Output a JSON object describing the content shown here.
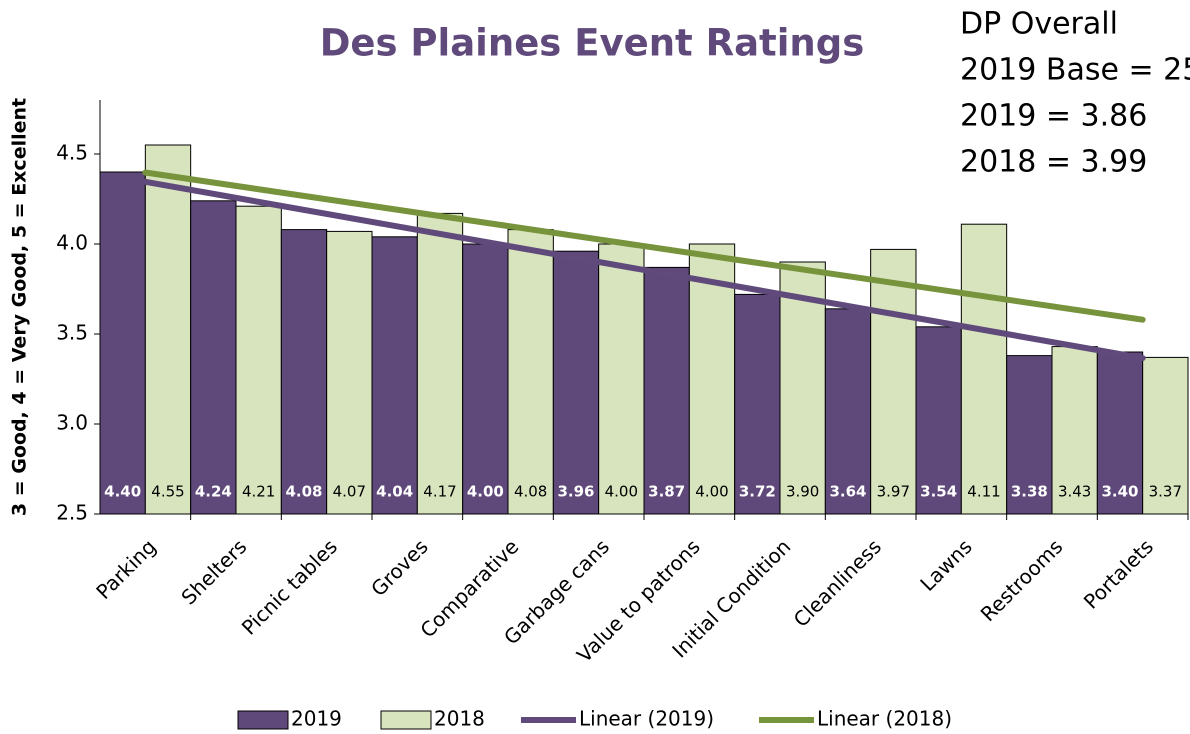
{
  "chart_data": {
    "type": "bar",
    "title": "Des Plaines Event Ratings",
    "y_label": "3 = Good, 4 = Very Good, 5 = Excellent",
    "annotations": [
      "DP Overall",
      "2019 Base = 25",
      "2019 = 3.86",
      "2018 = 3.99"
    ],
    "categories": [
      "Parking",
      "Shelters",
      "Picnic tables",
      "Groves",
      "Comparative",
      "Garbage cans",
      "Value to patrons",
      "Initial Condition",
      "Cleanliness",
      "Lawns",
      "Restrooms",
      "Portalets"
    ],
    "series": [
      {
        "name": "2019",
        "color": "#5f497a",
        "values": [
          4.4,
          4.24,
          4.08,
          4.04,
          4.0,
          3.96,
          3.87,
          3.72,
          3.64,
          3.54,
          3.38,
          3.4
        ],
        "value_labels": [
          "4.40",
          "4.24",
          "4.08",
          "4.04",
          "4.00",
          "3.96",
          "3.87",
          "3.72",
          "3.64",
          "3.54",
          "3.38",
          "3.40"
        ],
        "label_color": "#ffffff",
        "trendline": {
          "name": "Linear (2019)",
          "color": "#604a7b"
        }
      },
      {
        "name": "2018",
        "color": "#d7e4bd",
        "values": [
          4.55,
          4.21,
          4.07,
          4.17,
          4.08,
          4.0,
          4.0,
          3.9,
          3.97,
          4.11,
          3.43,
          3.37
        ],
        "value_labels": [
          "4.55",
          "4.21",
          "4.07",
          "4.17",
          "4.08",
          "4.00",
          "4.00",
          "3.90",
          "3.97",
          "4.11",
          "3.43",
          "3.37"
        ],
        "label_color": "#000000",
        "trendline": {
          "name": "Linear (2018)",
          "color": "#77933c"
        }
      }
    ],
    "ylim": [
      2.5,
      4.8
    ],
    "yticks": [
      2.5,
      {
        "value": 3,
        "label": "3.0"
      },
      3.5,
      {
        "value": 4,
        "label": "4.0"
      },
      4.5
    ],
    "grid": false
  }
}
